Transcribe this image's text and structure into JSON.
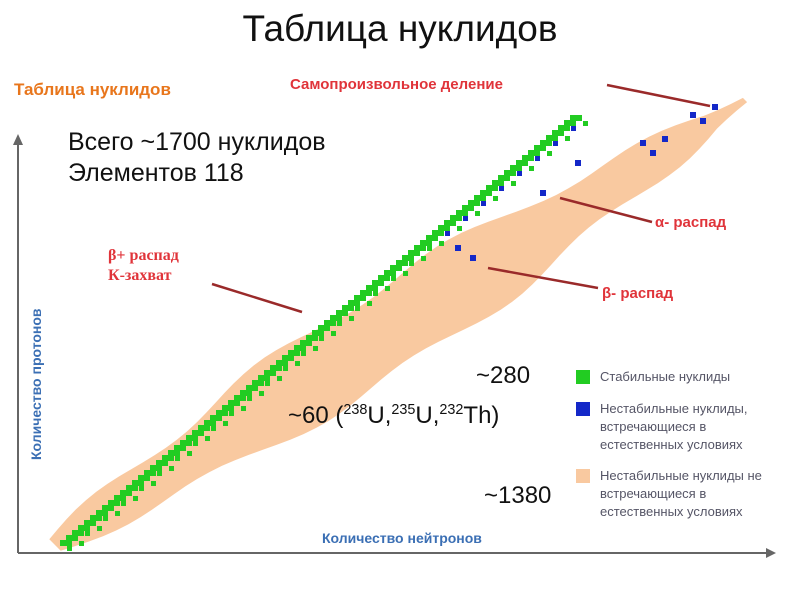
{
  "slide_title": "Таблица нуклидов",
  "inner_title": "Таблица нуклидов",
  "totals": {
    "line1": "Всего ~1700 нуклидов",
    "line2": "Элементов 118"
  },
  "labels": {
    "fission": "Самопроизвольное деление",
    "alpha": "α- распад",
    "beta_minus": "β- распад",
    "beta_plus": "β+ распад",
    "k_capture": "К-захват"
  },
  "counts": {
    "stable": "~280",
    "natural_prefix": "~60 (",
    "u238_mass": "238",
    "u238_sym": "U,",
    "u235_mass": "235",
    "u235_sym": "U,",
    "th232_mass": "232",
    "th232_sym": "Th)",
    "artificial": "~1380"
  },
  "legend": [
    {
      "color": "#22cc22",
      "lines": [
        "Стабильные нуклиды"
      ]
    },
    {
      "color": "#1428c8",
      "lines": [
        "Нестабильные нуклиды,",
        "встречающиеся в",
        "естественных условиях"
      ]
    },
    {
      "color": "#f9c9a0",
      "lines": [
        "Нестабильные нуклиды не",
        "встречающиеся в",
        "естественных условиях"
      ]
    }
  ],
  "axes": {
    "y_label": "Количество протонов",
    "x_label": "Количество нейтронов"
  },
  "colors": {
    "stable": "#22cc22",
    "natural": "#1428c8",
    "unstable": "#f9c9a0",
    "axis": "#3b6fb4",
    "arrow": "#b03030",
    "title_orange": "#e8761c"
  }
}
